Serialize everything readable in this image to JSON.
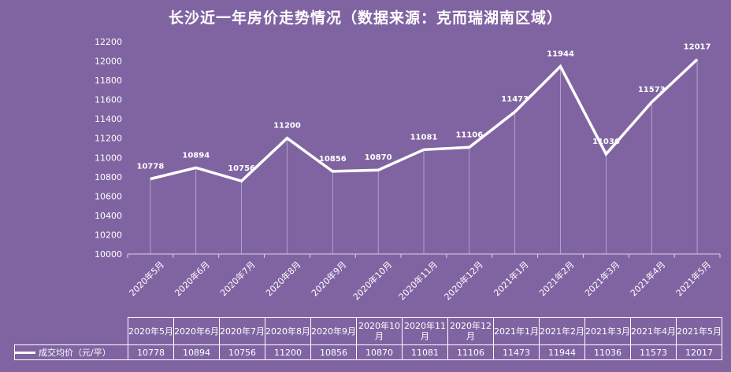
{
  "chart_data": {
    "type": "line",
    "title": "长沙近一年房价走势情况（数据来源：克而瑞湖南区域）",
    "categories": [
      "2020年5月",
      "2020年6月",
      "2020年7月",
      "2020年8月",
      "2020年9月",
      "2020年10月",
      "2020年11月",
      "2020年12月",
      "2021年1月",
      "2021年2月",
      "2021年3月",
      "2021年4月",
      "2021年5月"
    ],
    "table_headers": [
      "2020年5月",
      "2020年6月",
      "2020年7月",
      "2020年8月",
      "2020年9月",
      "2020年10\n月",
      "2020年11\n月",
      "2020年12\n月",
      "2021年1月",
      "2021年2月",
      "2021年3月",
      "2021年4月",
      "2021年5月"
    ],
    "series": [
      {
        "name": "成交均价（元/平）",
        "values": [
          10778,
          10894,
          10756,
          11200,
          10856,
          10870,
          11081,
          11106,
          11473,
          11944,
          11036,
          11573,
          12017
        ]
      }
    ],
    "yticks": [
      10000,
      10200,
      10400,
      10600,
      10800,
      11000,
      11200,
      11400,
      11600,
      11800,
      12000,
      12200
    ],
    "ylim": [
      10000,
      12200
    ],
    "grid": "vertical drop lines",
    "colors": {
      "background": "#8064a2",
      "line": "#ffffff"
    }
  }
}
